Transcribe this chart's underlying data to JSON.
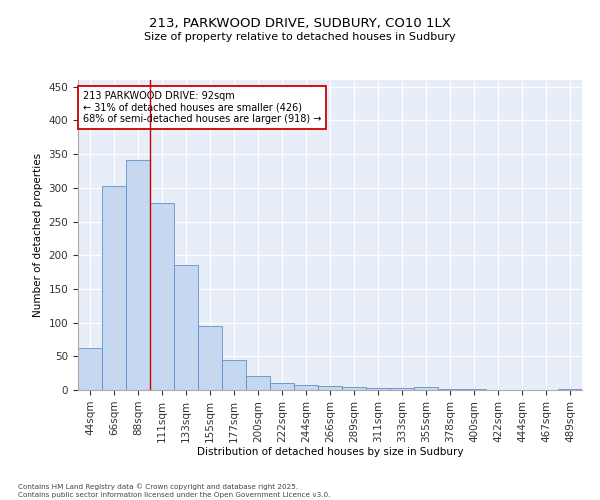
{
  "title": "213, PARKWOOD DRIVE, SUDBURY, CO10 1LX",
  "subtitle": "Size of property relative to detached houses in Sudbury",
  "xlabel": "Distribution of detached houses by size in Sudbury",
  "ylabel": "Number of detached properties",
  "bar_color": "#c5d8f0",
  "bar_edge_color": "#6090c8",
  "background_color": "#e8eef8",
  "grid_color": "#ffffff",
  "categories": [
    "44sqm",
    "66sqm",
    "88sqm",
    "111sqm",
    "133sqm",
    "155sqm",
    "177sqm",
    "200sqm",
    "222sqm",
    "244sqm",
    "266sqm",
    "289sqm",
    "311sqm",
    "333sqm",
    "355sqm",
    "378sqm",
    "400sqm",
    "422sqm",
    "444sqm",
    "467sqm",
    "489sqm"
  ],
  "values": [
    62,
    302,
    342,
    278,
    185,
    95,
    45,
    21,
    11,
    7,
    6,
    5,
    3,
    3,
    4,
    2,
    1,
    0,
    0,
    0,
    2
  ],
  "vline_x": 2.5,
  "vline_color": "#cc0000",
  "annotation_text": "213 PARKWOOD DRIVE: 92sqm\n← 31% of detached houses are smaller (426)\n68% of semi-detached houses are larger (918) →",
  "annotation_box_color": "#ffffff",
  "annotation_box_edge": "#cc0000",
  "footnote": "Contains HM Land Registry data © Crown copyright and database right 2025.\nContains public sector information licensed under the Open Government Licence v3.0.",
  "ylim": [
    0,
    460
  ],
  "yticks": [
    0,
    50,
    100,
    150,
    200,
    250,
    300,
    350,
    400,
    450
  ]
}
